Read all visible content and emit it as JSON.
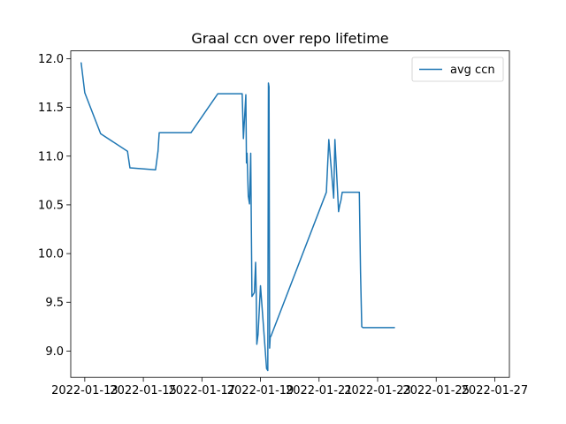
{
  "chart_data": {
    "type": "line",
    "title": "Graal ccn over repo lifetime",
    "xlabel": "",
    "ylabel": "",
    "x_ticks": [
      "2022-01-13",
      "2022-01-15",
      "2022-01-17",
      "2022-01-19",
      "2022-01-21",
      "2022-01-23",
      "2022-01-25",
      "2022-01-27"
    ],
    "y_ticks": [
      9.0,
      9.5,
      10.0,
      10.5,
      11.0,
      11.5,
      12.0
    ],
    "xlim": [
      "2022-01-12 12:30",
      "2022-01-27 12:00"
    ],
    "ylim": [
      8.73,
      12.08
    ],
    "grid": false,
    "legend_position": "top-right",
    "series": [
      {
        "name": "avg ccn",
        "color": "#1f77b4",
        "x": [
          "2022-01-12 21:00",
          "2022-01-13 00:00",
          "2022-01-13 13:00",
          "2022-01-14 11:00",
          "2022-01-14 13:00",
          "2022-01-15 10:00",
          "2022-01-15 12:00",
          "2022-01-15 13:00",
          "2022-01-16 15:00",
          "2022-01-17 13:00",
          "2022-01-18 09:00",
          "2022-01-18 10:00",
          "2022-01-18 12:00",
          "2022-01-18 12:30",
          "2022-01-18 13:00",
          "2022-01-18 14:00",
          "2022-01-18 15:00",
          "2022-01-18 16:00",
          "2022-01-18 17:00",
          "2022-01-18 19:00",
          "2022-01-18 20:00",
          "2022-01-18 20:30",
          "2022-01-18 21:00",
          "2022-01-18 22:00",
          "2022-01-19 00:00",
          "2022-01-19 05:00",
          "2022-01-19 06:00",
          "2022-01-19 06:30",
          "2022-01-19 07:00",
          "2022-01-19 07:30",
          "2022-01-19 08:00",
          "2022-01-19 08:30",
          "2022-01-21 06:00",
          "2022-01-21 08:00",
          "2022-01-21 12:00",
          "2022-01-21 13:00",
          "2022-01-21 16:00",
          "2022-01-21 17:00",
          "2022-01-21 18:00",
          "2022-01-21 19:00",
          "2022-01-22 09:00",
          "2022-01-22 10:00",
          "2022-01-22 11:00",
          "2022-01-22 12:00",
          "2022-01-22 13:00",
          "2022-01-23 13:00",
          "2022-01-23 13:30",
          "2022-01-23 14:00"
        ],
        "values": [
          11.96,
          11.65,
          11.23,
          11.05,
          10.88,
          10.86,
          11.05,
          11.24,
          11.24,
          11.64,
          11.64,
          11.18,
          11.63,
          10.93,
          11.03,
          10.59,
          10.51,
          11.03,
          9.56,
          9.6,
          9.91,
          9.6,
          9.07,
          9.17,
          9.67,
          8.82,
          8.8,
          11.75,
          11.71,
          9.03,
          9.15,
          9.15,
          10.63,
          11.17,
          10.57,
          11.17,
          10.43,
          10.5,
          10.55,
          10.63,
          10.63,
          9.8,
          9.25,
          9.24,
          9.24,
          9.24,
          9.24,
          9.24
        ]
      }
    ]
  }
}
